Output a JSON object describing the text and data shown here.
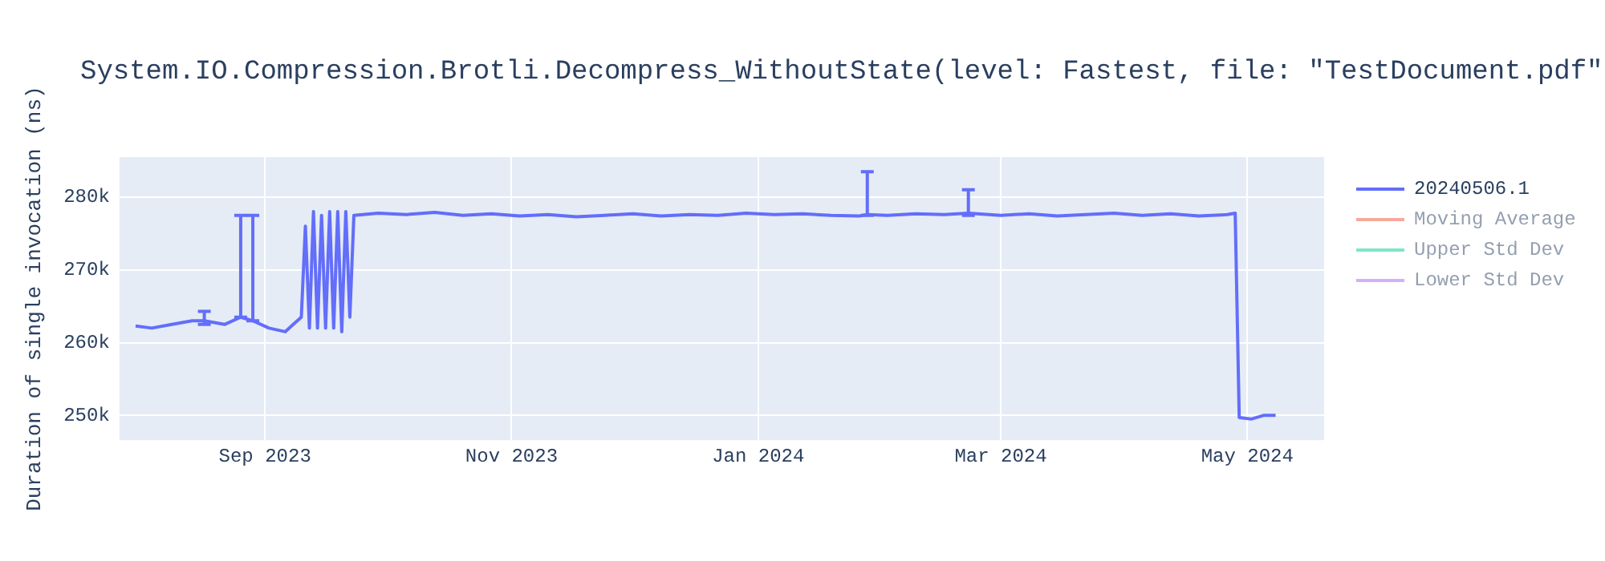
{
  "chart_data": {
    "type": "line",
    "title": "System.IO.Compression.Brotli.Decompress_WithoutState(level: Fastest, file: \"TestDocument.pdf\"",
    "ylabel": "Duration of single invocation (ns)",
    "x": [
      "2023-07-31",
      "2023-08-04",
      "2023-08-09",
      "2023-08-14",
      "2023-08-17",
      "2023-08-22",
      "2023-08-26",
      "2023-08-29",
      "2023-09-02",
      "2023-09-06",
      "2023-09-08",
      "2023-09-10",
      "2023-09-11",
      "2023-09-12",
      "2023-09-13",
      "2023-09-14",
      "2023-09-15",
      "2023-09-16",
      "2023-09-17",
      "2023-09-18",
      "2023-09-19",
      "2023-09-20",
      "2023-09-21",
      "2023-09-22",
      "2023-09-23",
      "2023-09-29",
      "2023-10-06",
      "2023-10-13",
      "2023-10-20",
      "2023-10-27",
      "2023-11-03",
      "2023-11-10",
      "2023-11-17",
      "2023-11-24",
      "2023-12-01",
      "2023-12-08",
      "2023-12-15",
      "2023-12-22",
      "2023-12-29",
      "2024-01-05",
      "2024-01-12",
      "2024-01-19",
      "2024-01-26",
      "2024-01-28",
      "2024-02-02",
      "2024-02-09",
      "2024-02-16",
      "2024-02-22",
      "2024-03-01",
      "2024-03-08",
      "2024-03-15",
      "2024-03-22",
      "2024-03-29",
      "2024-04-05",
      "2024-04-12",
      "2024-04-19",
      "2024-04-26",
      "2024-04-28",
      "2024-04-29",
      "2024-05-02",
      "2024-05-05",
      "2024-05-08"
    ],
    "series": [
      {
        "name": "20240506.1",
        "color": "#636efa",
        "values": [
          262300,
          262000,
          262500,
          263000,
          263000,
          262500,
          263500,
          263000,
          262000,
          261500,
          262500,
          263500,
          276000,
          262000,
          278000,
          262000,
          277500,
          262000,
          278000,
          262000,
          278000,
          261500,
          278000,
          263500,
          277500,
          277800,
          277600,
          277900,
          277500,
          277700,
          277400,
          277600,
          277300,
          277500,
          277700,
          277400,
          277600,
          277500,
          277800,
          277600,
          277700,
          277500,
          277400,
          277600,
          277500,
          277700,
          277600,
          277800,
          277500,
          277700,
          277400,
          277600,
          277800,
          277500,
          277700,
          277400,
          277600,
          277800,
          249700,
          249500,
          250000,
          250000
        ],
        "errors": [
          null,
          null,
          null,
          null,
          [
            262500,
            264300
          ],
          null,
          [
            263500,
            277500
          ],
          [
            263000,
            277500
          ],
          null,
          null,
          null,
          null,
          null,
          null,
          null,
          null,
          null,
          null,
          null,
          null,
          null,
          null,
          null,
          null,
          null,
          null,
          null,
          null,
          null,
          null,
          null,
          null,
          null,
          null,
          null,
          null,
          null,
          null,
          null,
          null,
          null,
          null,
          null,
          [
            277500,
            283500
          ],
          null,
          null,
          null,
          [
            277500,
            281000
          ],
          null,
          null,
          null,
          null,
          null,
          null,
          null,
          null,
          null,
          null,
          null,
          null,
          null,
          null
        ]
      },
      {
        "name": "Moving Average",
        "color": "#ef553b",
        "values": [
          null,
          null,
          null,
          null,
          null,
          null,
          null,
          null,
          null,
          null,
          null,
          null,
          null,
          null,
          null,
          null,
          null,
          null,
          null,
          null,
          null,
          null,
          null,
          null,
          null,
          null,
          null,
          null,
          null,
          null,
          null,
          null,
          null,
          null,
          null,
          null,
          null,
          null,
          null,
          null,
          null,
          null,
          null,
          null,
          null,
          null,
          null,
          null,
          null,
          null,
          null,
          null,
          null,
          null,
          null,
          null,
          null,
          null,
          null,
          null,
          null,
          null
        ]
      },
      {
        "name": "Upper Std Dev",
        "color": "#00cc96",
        "values": [
          null,
          null,
          null,
          null,
          null,
          null,
          null,
          null,
          null,
          null,
          null,
          null,
          null,
          null,
          null,
          null,
          null,
          null,
          null,
          null,
          null,
          null,
          null,
          null,
          null,
          null,
          null,
          null,
          null,
          null,
          null,
          null,
          null,
          null,
          null,
          null,
          null,
          null,
          null,
          null,
          null,
          null,
          null,
          null,
          null,
          null,
          null,
          null,
          null,
          null,
          null,
          null,
          null,
          null,
          null,
          null,
          null,
          null,
          null,
          null,
          null,
          null
        ]
      },
      {
        "name": "Lower Std Dev",
        "color": "#ab63fa",
        "values": [
          null,
          null,
          null,
          null,
          null,
          null,
          null,
          null,
          null,
          null,
          null,
          null,
          null,
          null,
          null,
          null,
          null,
          null,
          null,
          null,
          null,
          null,
          null,
          null,
          null,
          null,
          null,
          null,
          null,
          null,
          null,
          null,
          null,
          null,
          null,
          null,
          null,
          null,
          null,
          null,
          null,
          null,
          null,
          null,
          null,
          null,
          null,
          null,
          null,
          null,
          null,
          null,
          null,
          null,
          null,
          null,
          null,
          null,
          null,
          null,
          null,
          null
        ]
      }
    ],
    "xlim": [
      "2023-07-27",
      "2024-05-20"
    ],
    "xticks": [
      {
        "value": "2023-09-01",
        "label": "Sep 2023"
      },
      {
        "value": "2023-11-01",
        "label": "Nov 2023"
      },
      {
        "value": "2024-01-01",
        "label": "Jan 2024"
      },
      {
        "value": "2024-03-01",
        "label": "Mar 2024"
      },
      {
        "value": "2024-05-01",
        "label": "May 2024"
      }
    ],
    "ylim": [
      246600,
      285500
    ],
    "yticks": [
      {
        "value": 250000,
        "label": "250k"
      },
      {
        "value": 260000,
        "label": "260k"
      },
      {
        "value": 270000,
        "label": "270k"
      },
      {
        "value": 280000,
        "label": "280k"
      }
    ],
    "grid": true,
    "legend": "right",
    "marker": "none",
    "line_style": "solid"
  }
}
